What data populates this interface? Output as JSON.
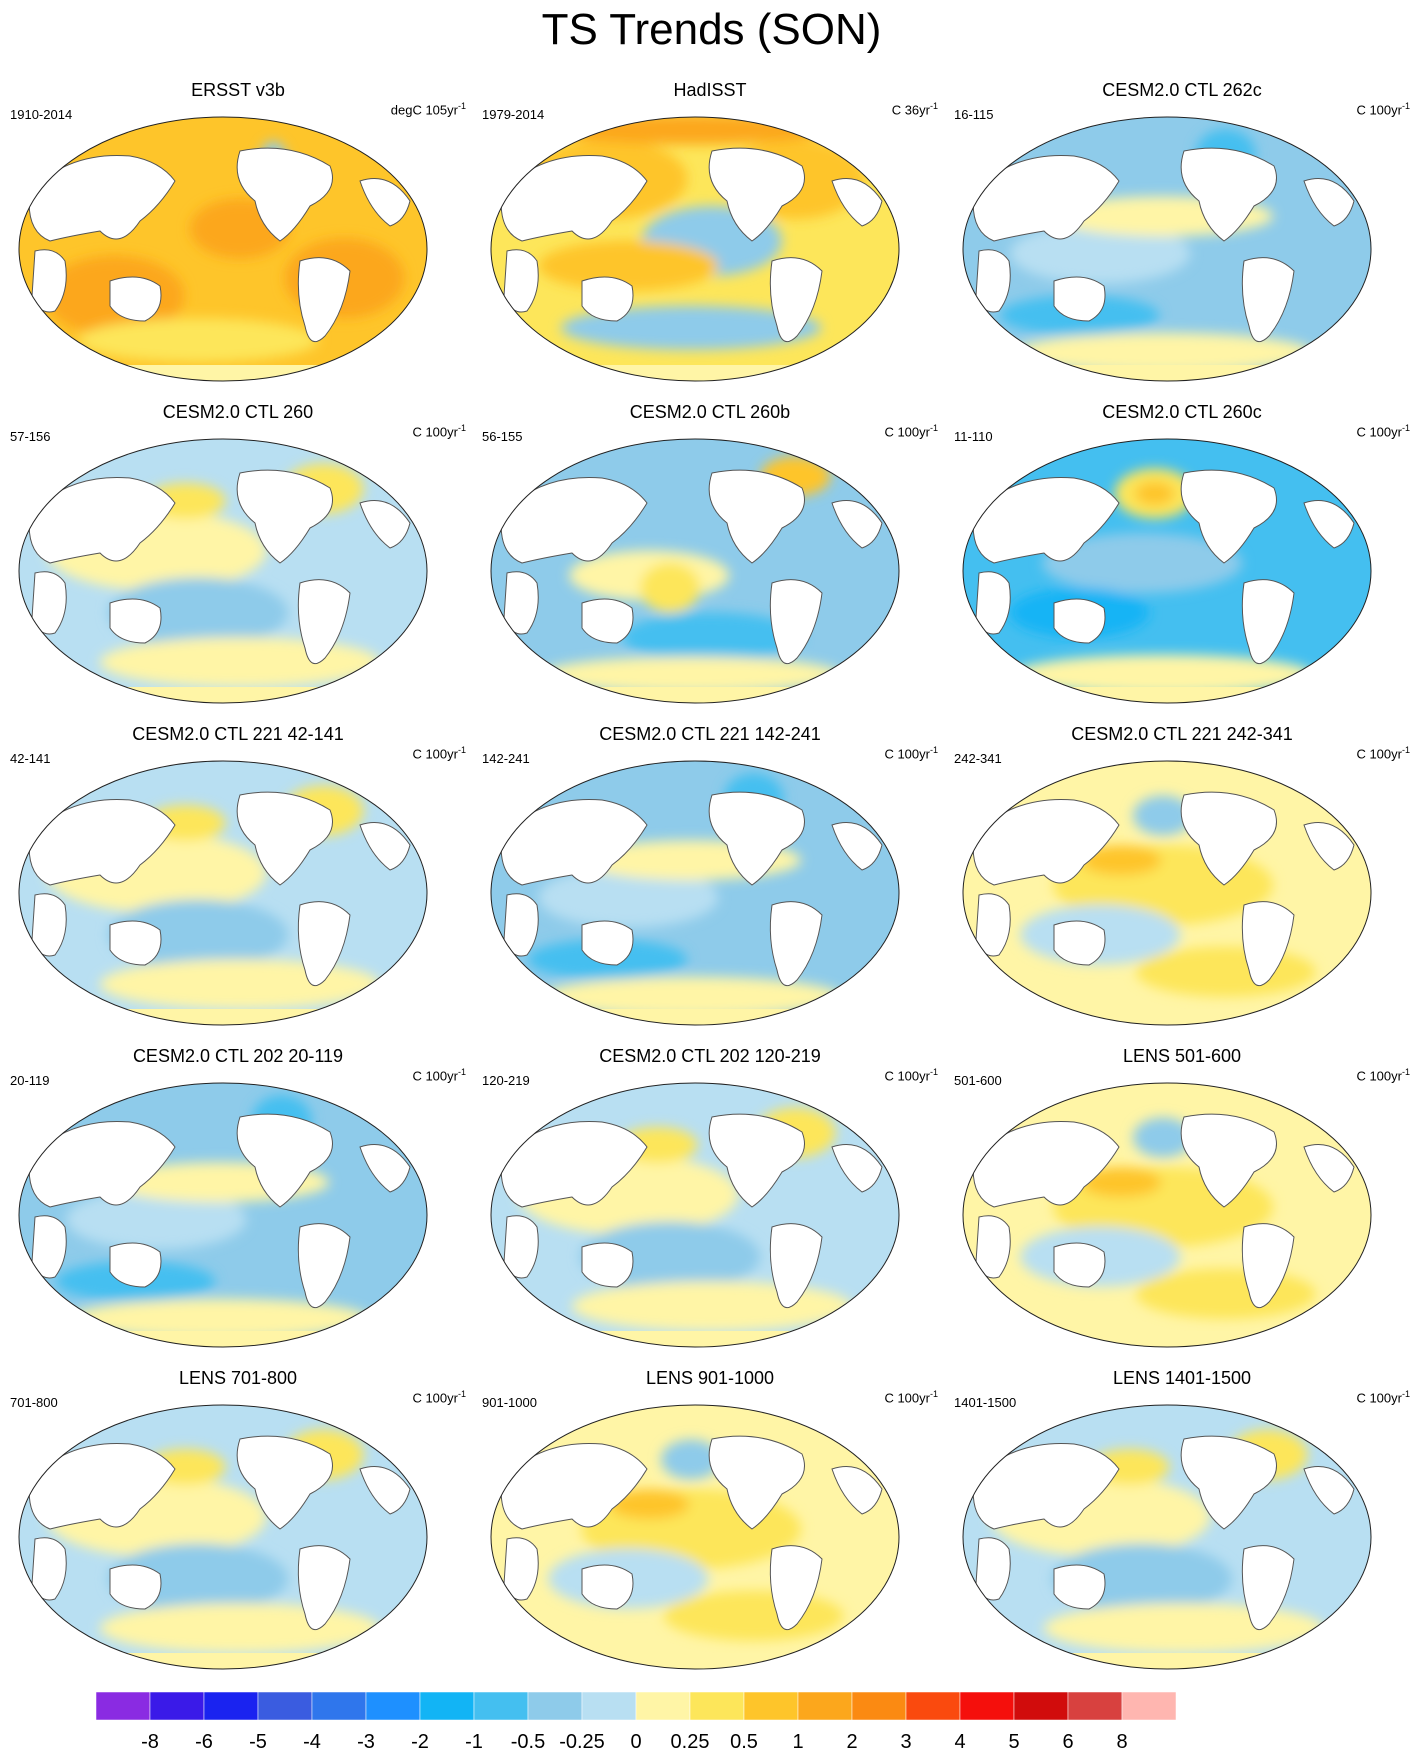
{
  "title": "TS Trends (SON)",
  "panels": [
    {
      "title": "ERSST v3b",
      "left": "1910-2014",
      "unit": "degC 105yr",
      "unit_sup": "-1",
      "style": "ersst"
    },
    {
      "title": "HadISST",
      "left": "1979-2014",
      "unit": "C 36yr",
      "unit_sup": "-1",
      "style": "hadisst"
    },
    {
      "title": "CESM2.0 CTL 262c",
      "left": "16-115",
      "unit": "C 100yr",
      "unit_sup": "-1",
      "style": "cool"
    },
    {
      "title": "CESM2.0 CTL 260",
      "left": "57-156",
      "unit": "C 100yr",
      "unit_sup": "-1",
      "style": "mixed_warm"
    },
    {
      "title": "CESM2.0 CTL 260b",
      "left": "56-155",
      "unit": "C 100yr",
      "unit_sup": "-1",
      "style": "mixed_cool"
    },
    {
      "title": "CESM2.0 CTL 260c",
      "left": "11-110",
      "unit": "C 100yr",
      "unit_sup": "-1",
      "style": "strong_cool"
    },
    {
      "title": "CESM2.0 CTL 221 42-141",
      "left": "42-141",
      "unit": "C 100yr",
      "unit_sup": "-1",
      "style": "mixed_warm"
    },
    {
      "title": "CESM2.0 CTL 221 142-241",
      "left": "142-241",
      "unit": "C 100yr",
      "unit_sup": "-1",
      "style": "cool"
    },
    {
      "title": "CESM2.0 CTL 221 242-341",
      "left": "242-341",
      "unit": "C 100yr",
      "unit_sup": "-1",
      "style": "warm"
    },
    {
      "title": "CESM2.0 CTL 202 20-119",
      "left": "20-119",
      "unit": "C 100yr",
      "unit_sup": "-1",
      "style": "cool"
    },
    {
      "title": "CESM2.0 CTL 202 120-219",
      "left": "120-219",
      "unit": "C 100yr",
      "unit_sup": "-1",
      "style": "mixed_warm"
    },
    {
      "title": "LENS 501-600",
      "left": "501-600",
      "unit": "C 100yr",
      "unit_sup": "-1",
      "style": "warm"
    },
    {
      "title": "LENS 701-800",
      "left": "701-800",
      "unit": "C 100yr",
      "unit_sup": "-1",
      "style": "mixed_warm"
    },
    {
      "title": "LENS 901-1000",
      "left": "901-1000",
      "unit": "C 100yr",
      "unit_sup": "-1",
      "style": "warm"
    },
    {
      "title": "LENS 1401-1500",
      "left": "1401-1500",
      "unit": "C 100yr",
      "unit_sup": "-1",
      "style": "mixed_warm"
    }
  ],
  "colorbar": {
    "labels": [
      "-8",
      "-6",
      "-5",
      "-4",
      "-3",
      "-2",
      "-1",
      "-0.5",
      "-0.25",
      "0",
      "0.25",
      "0.5",
      "1",
      "2",
      "3",
      "4",
      "5",
      "6",
      "8"
    ],
    "colors": [
      "#8a2be2",
      "#3a1ae8",
      "#1a23f0",
      "#3a5ce0",
      "#2f76ec",
      "#1e90ff",
      "#12b4f5",
      "#44bff0",
      "#8ecbea",
      "#b8dff2",
      "#fff5a6",
      "#fde65a",
      "#fec52a",
      "#fca71c",
      "#fb8a12",
      "#fa4a0e",
      "#f50f0c",
      "#d10c0c",
      "#d8413f",
      "#ffb6b0"
    ]
  },
  "chart_data": {
    "type": "heatmap",
    "title": "TS Trends (SON)",
    "projection": "robinson-like (Pacific-centered)",
    "levels": [
      -8,
      -6,
      -5,
      -4,
      -3,
      -2,
      -1,
      -0.5,
      -0.25,
      0,
      0.25,
      0.5,
      1,
      2,
      3,
      4,
      5,
      6,
      8
    ],
    "legend_position": "bottom",
    "maps": [
      {
        "name": "ERSST v3b",
        "period": "1910-2014",
        "unit": "degC 105yr-1",
        "dominant_range": [
          0.5,
          1
        ]
      },
      {
        "name": "HadISST",
        "period": "1979-2014",
        "unit": "C 36yr-1",
        "dominant_range": [
          0.25,
          1
        ]
      },
      {
        "name": "CESM2.0 CTL 262c",
        "period": "16-115",
        "unit": "C 100yr-1",
        "dominant_range": [
          -0.5,
          0
        ]
      },
      {
        "name": "CESM2.0 CTL 260",
        "period": "57-156",
        "unit": "C 100yr-1",
        "dominant_range": [
          -0.25,
          0.25
        ]
      },
      {
        "name": "CESM2.0 CTL 260b",
        "period": "56-155",
        "unit": "C 100yr-1",
        "dominant_range": [
          -0.5,
          0.25
        ]
      },
      {
        "name": "CESM2.0 CTL 260c",
        "period": "11-110",
        "unit": "C 100yr-1",
        "dominant_range": [
          -1,
          -0.25
        ]
      },
      {
        "name": "CESM2.0 CTL 221 42-141",
        "period": "42-141",
        "unit": "C 100yr-1",
        "dominant_range": [
          -0.25,
          0.5
        ]
      },
      {
        "name": "CESM2.0 CTL 221 142-241",
        "period": "142-241",
        "unit": "C 100yr-1",
        "dominant_range": [
          -0.5,
          0.25
        ]
      },
      {
        "name": "CESM2.0 CTL 221 242-341",
        "period": "242-341",
        "unit": "C 100yr-1",
        "dominant_range": [
          0,
          0.5
        ]
      },
      {
        "name": "CESM2.0 CTL 202 20-119",
        "period": "20-119",
        "unit": "C 100yr-1",
        "dominant_range": [
          -0.5,
          0
        ]
      },
      {
        "name": "CESM2.0 CTL 202 120-219",
        "period": "120-219",
        "unit": "C 100yr-1",
        "dominant_range": [
          -0.25,
          0.5
        ]
      },
      {
        "name": "LENS 501-600",
        "period": "501-600",
        "unit": "C 100yr-1",
        "dominant_range": [
          0,
          0.5
        ]
      },
      {
        "name": "LENS 701-800",
        "period": "701-800",
        "unit": "C 100yr-1",
        "dominant_range": [
          -0.25,
          0.5
        ]
      },
      {
        "name": "LENS 901-1000",
        "period": "901-1000",
        "unit": "C 100yr-1",
        "dominant_range": [
          0,
          0.5
        ]
      },
      {
        "name": "LENS 1401-1500",
        "period": "1401-1500",
        "unit": "C 100yr-1",
        "dominant_range": [
          -0.25,
          0.25
        ]
      }
    ]
  }
}
